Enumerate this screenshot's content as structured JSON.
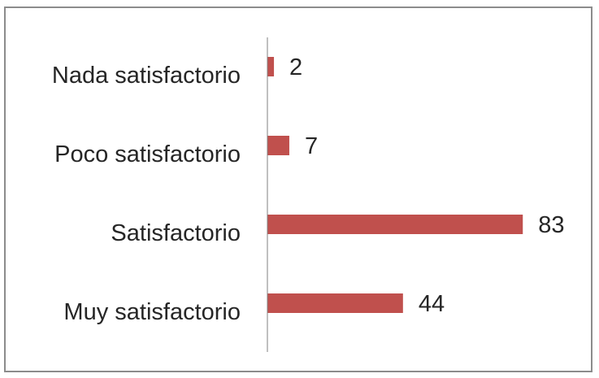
{
  "chart_data": {
    "type": "bar",
    "orientation": "horizontal",
    "categories": [
      "Nada satisfactorio",
      "Poco satisfactorio",
      "Satisfactorio",
      "Muy satisfactorio"
    ],
    "values": [
      2,
      7,
      83,
      44
    ],
    "title": "",
    "xlabel": "",
    "ylabel": "",
    "xlim": [
      0,
      100
    ],
    "grid": false,
    "legend": "none",
    "bar_color": "#c0504d",
    "axis_color": "#808080",
    "border_color": "#8c8c8c"
  }
}
